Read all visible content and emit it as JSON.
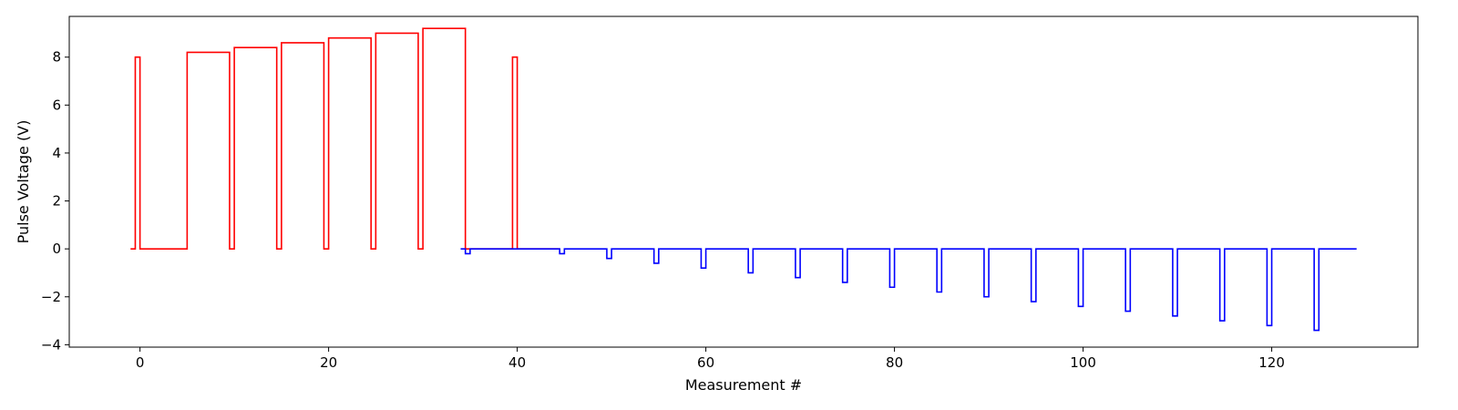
{
  "chart_data": {
    "type": "line",
    "title": "",
    "xlabel": "Measurement #",
    "ylabel": "Pulse Voltage (V)",
    "xlim": [
      -7.5,
      135.5
    ],
    "ylim": [
      -4.1,
      9.7
    ],
    "grid": false,
    "xticks": [
      0,
      20,
      40,
      60,
      80,
      100,
      120
    ],
    "yticks": [
      -4,
      -2,
      0,
      2,
      4,
      6,
      8
    ],
    "xtick_labels": [
      "0",
      "20",
      "40",
      "60",
      "80",
      "100",
      "120"
    ],
    "ytick_labels": [
      "−4",
      "−2",
      "0",
      "2",
      "4",
      "6",
      "8"
    ],
    "series": [
      {
        "color": "#ff0000",
        "step": "post",
        "x": [
          -1,
          -0.5,
          0,
          4.5,
          5,
          9.5,
          10,
          14.5,
          15,
          19.5,
          20,
          24.5,
          25,
          29.5,
          30,
          34.5,
          35,
          39.5,
          40,
          44.5
        ],
        "y": [
          0,
          8.0,
          0,
          0,
          8.2,
          0,
          8.4,
          0,
          8.6,
          0,
          8.8,
          0,
          9.0,
          0,
          9.2,
          0,
          0,
          8.0,
          0,
          0
        ]
      },
      {
        "color": "#0000ff",
        "step": "post",
        "x": [
          34,
          34.5,
          35,
          44.5,
          45,
          49.5,
          50,
          54.5,
          55,
          59.5,
          60,
          64.5,
          65,
          69.5,
          70,
          74.5,
          75,
          79.5,
          80,
          84.5,
          85,
          89.5,
          90,
          94.5,
          95,
          99.5,
          100,
          104.5,
          105,
          109.5,
          110,
          114.5,
          115,
          119.5,
          120,
          124.5,
          125,
          129
        ],
        "y": [
          0,
          -0.2,
          0,
          -0.2,
          0,
          -0.4,
          0,
          -0.6,
          0,
          -0.8,
          0,
          -1.0,
          0,
          -1.2,
          0,
          -1.4,
          0,
          -1.6,
          0,
          -1.8,
          0,
          -2.0,
          0,
          -2.2,
          0,
          -2.4,
          0,
          -2.6,
          0,
          -2.8,
          0,
          -3.0,
          0,
          -3.2,
          0,
          -3.4,
          0,
          0
        ]
      }
    ]
  }
}
